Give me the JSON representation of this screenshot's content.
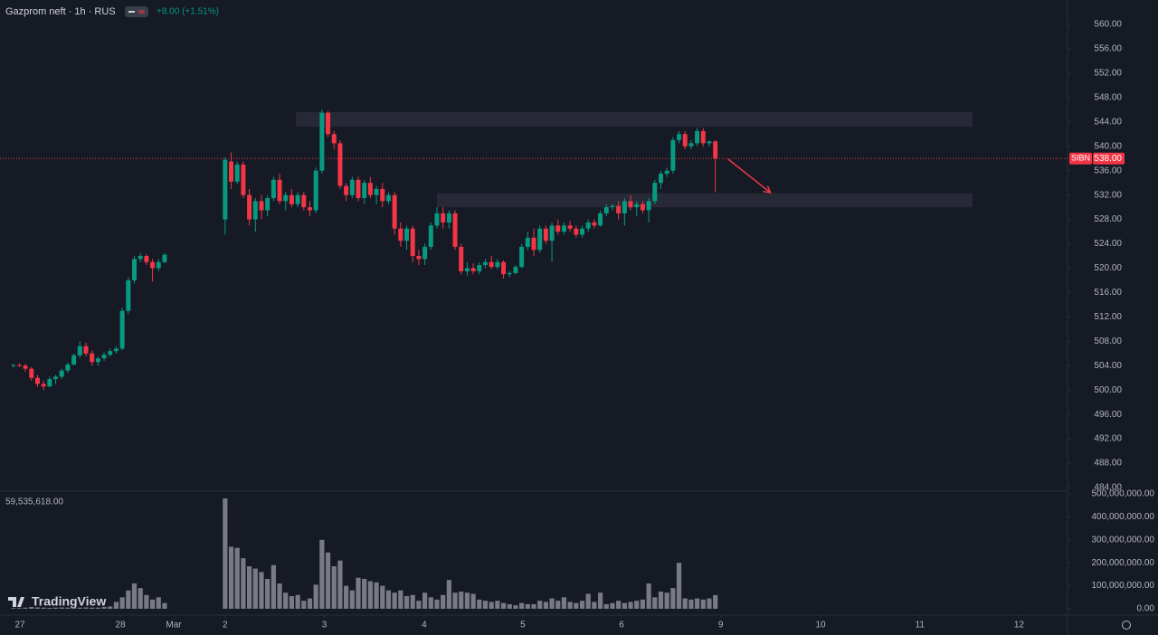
{
  "logo": "TradingView",
  "chart_data": [
    {
      "type": "candlestick",
      "title": "Gazprom neft · 1h · RUS",
      "change": "+8.00 (+1.51%)",
      "symbol": "SIBN",
      "last_price": {
        "value": 538,
        "label": "538.00"
      },
      "up_color": "#089981",
      "down_color": "#f23645",
      "x": [
        0,
        1,
        2,
        3,
        4,
        5,
        6,
        7,
        8,
        9,
        10,
        11,
        12,
        13,
        14,
        15,
        16,
        17,
        18,
        19,
        20,
        21,
        22,
        23,
        24,
        25,
        35,
        36,
        37,
        38,
        39,
        40,
        41,
        42,
        43,
        44,
        45,
        46,
        47,
        48,
        49,
        50,
        51,
        52,
        53,
        54,
        55,
        56,
        57,
        58,
        59,
        60,
        61,
        62,
        63,
        64,
        65,
        66,
        67,
        68,
        69,
        70,
        71,
        72,
        73,
        74,
        75,
        76,
        77,
        78,
        79,
        80,
        81,
        82,
        83,
        84,
        85,
        86,
        87,
        88,
        89,
        90,
        91,
        92,
        93,
        94,
        95,
        96,
        97,
        98,
        99,
        100,
        101,
        102,
        103,
        104,
        105,
        106,
        107,
        108,
        109,
        110,
        111,
        112,
        113,
        114,
        115,
        116
      ],
      "open": [
        504,
        504.1,
        504,
        503.5,
        502,
        501,
        500.6,
        501.8,
        502.2,
        503.2,
        504.2,
        505.7,
        507.2,
        506,
        504.6,
        505.2,
        505.8,
        506.4,
        506.8,
        513,
        518,
        521.5,
        522,
        521,
        520,
        521,
        528,
        537.5,
        534.2,
        537,
        532,
        528,
        531,
        529.5,
        531.5,
        534.5,
        531,
        532,
        530.5,
        532,
        530,
        529.5,
        536,
        545.5,
        542,
        540.5,
        533.5,
        532,
        534.5,
        531.5,
        534,
        532,
        533,
        531,
        532,
        526.5,
        524.5,
        526.5,
        522,
        521.5,
        523.5,
        527,
        529,
        527.5,
        529,
        523.5,
        519.5,
        520,
        519.5,
        520.5,
        521,
        520.2,
        521,
        519,
        519.2,
        520.2,
        523.5,
        525,
        523,
        526.5,
        524.5,
        527,
        526,
        527,
        526.5,
        525.5,
        526.5,
        527.5,
        527,
        529,
        530,
        530.2,
        529,
        531,
        530,
        530.5,
        529.5,
        531,
        534,
        535.5,
        536,
        541,
        542,
        540,
        540.5,
        542.5,
        540.5,
        540.8
      ],
      "high": [
        504.3,
        504.4,
        504.3,
        503.8,
        502.5,
        501.5,
        502.2,
        502.5,
        503.5,
        504.5,
        506,
        508,
        507.8,
        506.5,
        505.5,
        506.2,
        506.8,
        507.2,
        513.5,
        518.5,
        522,
        522.5,
        522.3,
        521.5,
        521.5,
        522.5,
        538.2,
        539,
        537.5,
        537.5,
        533,
        531.5,
        532,
        532,
        535,
        535.5,
        532.5,
        533,
        532.5,
        532.5,
        531,
        536.5,
        546,
        545.8,
        542.5,
        541,
        534,
        535,
        535,
        534.5,
        535,
        533.5,
        534,
        532.5,
        532.5,
        527.5,
        527,
        527,
        523,
        524,
        527.5,
        530,
        530,
        529.5,
        529.5,
        524,
        521,
        520.8,
        521,
        521.5,
        522,
        521.5,
        521.3,
        519.5,
        520.5,
        524,
        526,
        526.5,
        527,
        527,
        527.5,
        528,
        527.5,
        527.8,
        527,
        527,
        528,
        528,
        529.5,
        530.5,
        530.5,
        531,
        531.5,
        532,
        531,
        531,
        531.5,
        534.5,
        536,
        536.5,
        541.5,
        542.5,
        542.5,
        541,
        543,
        543,
        541,
        541
      ],
      "low": [
        503.7,
        503.8,
        503,
        501.5,
        500.5,
        500,
        500.4,
        501,
        501.8,
        502.8,
        504,
        505.3,
        505.5,
        504,
        504,
        504.8,
        505.5,
        506,
        506.5,
        512.5,
        517.5,
        521,
        520.5,
        517.8,
        519.5,
        520.8,
        525.5,
        533,
        533.8,
        531.5,
        527,
        526,
        528,
        528.5,
        531,
        530.5,
        529.5,
        530,
        530,
        529.5,
        528.5,
        529,
        535.5,
        541.5,
        539.5,
        533,
        531,
        531.5,
        531,
        530.5,
        531.5,
        530.5,
        530,
        530.5,
        525.5,
        523.5,
        523,
        521,
        520.5,
        520.5,
        523,
        526.5,
        526.5,
        526.5,
        523,
        519,
        518.8,
        519,
        519,
        520,
        519.8,
        519.8,
        518.3,
        518.5,
        519,
        520,
        523,
        522,
        522.5,
        524,
        521,
        525.5,
        525.5,
        526,
        525,
        525,
        526,
        526.5,
        526.8,
        528.5,
        529.5,
        528,
        527,
        529.5,
        528.5,
        529,
        527.5,
        530.5,
        533,
        535,
        535.5,
        540.5,
        539.5,
        539.5,
        540,
        540,
        540,
        532.5
      ],
      "close": [
        504.1,
        504,
        503.5,
        502,
        501,
        500.6,
        501.8,
        502.2,
        503.2,
        504.2,
        505.7,
        507.2,
        506,
        504.6,
        505.2,
        505.8,
        506.4,
        506.8,
        513,
        518,
        521.5,
        522,
        521,
        520,
        521,
        522.2,
        537.8,
        534.2,
        537,
        532,
        528,
        531,
        529.5,
        531.5,
        534.5,
        531,
        532,
        530.5,
        532,
        530,
        529.5,
        536,
        545.5,
        542,
        540.5,
        533.5,
        532,
        534.5,
        531.5,
        534,
        532,
        533,
        531,
        532,
        526.5,
        524.5,
        526.5,
        522,
        521.5,
        523.5,
        527,
        529,
        527.5,
        529,
        523.5,
        519.5,
        520,
        519.5,
        520.5,
        521,
        520.2,
        521,
        519,
        519.2,
        520.2,
        523.5,
        525,
        523,
        526.5,
        524.5,
        527,
        526,
        527,
        526.5,
        525.5,
        526.5,
        527.5,
        527,
        529,
        530,
        530.2,
        529,
        531,
        530,
        530.5,
        529.5,
        531,
        534,
        535.5,
        536,
        541,
        542,
        540,
        540.5,
        542.5,
        540.5,
        540.8,
        538
      ],
      "zones": [
        {
          "xlim": [
            46.7,
            158.5
          ],
          "ylim": [
            543.2,
            545.6
          ],
          "color": "#2a2e39"
        },
        {
          "xlim": [
            70.0,
            158.5
          ],
          "ylim": [
            530.0,
            532.3
          ],
          "color": "#2a2e39"
        }
      ],
      "arrow": {
        "x": [
          118.1,
          125.1
        ],
        "y": [
          537.9,
          532.4
        ],
        "color": "#f23645"
      },
      "xlim": [
        -2.2,
        174.2
      ],
      "xticks": [
        {
          "value": 1.1,
          "label": "27"
        },
        {
          "value": 17.7,
          "label": "28"
        },
        {
          "value": 26.5,
          "label": "Mar"
        },
        {
          "value": 35,
          "label": "2"
        },
        {
          "value": 51.4,
          "label": "3"
        },
        {
          "value": 67.9,
          "label": "4"
        },
        {
          "value": 84.2,
          "label": "5"
        },
        {
          "value": 100.5,
          "label": "6"
        },
        {
          "value": 116.9,
          "label": "9"
        },
        {
          "value": 133.4,
          "label": "10"
        },
        {
          "value": 149.8,
          "label": "11"
        },
        {
          "value": 166.2,
          "label": "12"
        }
      ],
      "ylim": [
        484,
        560
      ],
      "yticks": [
        {
          "value": 484,
          "label": "484.00"
        },
        {
          "value": 488,
          "label": "488.00"
        },
        {
          "value": 492,
          "label": "492.00"
        },
        {
          "value": 496,
          "label": "496.00"
        },
        {
          "value": 500,
          "label": "500.00"
        },
        {
          "value": 504,
          "label": "504.00"
        },
        {
          "value": 508,
          "label": "508.00"
        },
        {
          "value": 512,
          "label": "512.00"
        },
        {
          "value": 516,
          "label": "516.00"
        },
        {
          "value": 520,
          "label": "520.00"
        },
        {
          "value": 524,
          "label": "524.00"
        },
        {
          "value": 528,
          "label": "528.00"
        },
        {
          "value": 532,
          "label": "532.00"
        },
        {
          "value": 536,
          "label": "536.00"
        },
        {
          "value": 540,
          "label": "540.00"
        },
        {
          "value": 544,
          "label": "544.00"
        },
        {
          "value": 548,
          "label": "548.00"
        },
        {
          "value": 552,
          "label": "552.00"
        },
        {
          "value": 556,
          "label": "556.00"
        },
        {
          "value": 560,
          "label": "560.00"
        }
      ]
    },
    {
      "type": "bar",
      "legend_value": "59,535,618.00",
      "color": "#787b86",
      "x": [
        0,
        1,
        2,
        3,
        4,
        5,
        6,
        7,
        8,
        9,
        10,
        11,
        12,
        13,
        14,
        15,
        16,
        17,
        18,
        19,
        20,
        21,
        22,
        23,
        24,
        25,
        35,
        36,
        37,
        38,
        39,
        40,
        41,
        42,
        43,
        44,
        45,
        46,
        47,
        48,
        49,
        50,
        51,
        52,
        53,
        54,
        55,
        56,
        57,
        58,
        59,
        60,
        61,
        62,
        63,
        64,
        65,
        66,
        67,
        68,
        69,
        70,
        71,
        72,
        73,
        74,
        75,
        76,
        77,
        78,
        79,
        80,
        81,
        82,
        83,
        84,
        85,
        86,
        87,
        88,
        89,
        90,
        91,
        92,
        93,
        94,
        95,
        96,
        97,
        98,
        99,
        100,
        101,
        102,
        103,
        104,
        105,
        106,
        107,
        108,
        109,
        110,
        111,
        112,
        113,
        114,
        115,
        116
      ],
      "values": [
        3000000,
        3000000,
        5000000,
        8000000,
        6000000,
        5000000,
        4000000,
        5000000,
        6000000,
        5000000,
        6000000,
        5000000,
        6000000,
        5000000,
        5000000,
        8000000,
        10000000,
        30000000,
        50000000,
        80000000,
        110000000,
        90000000,
        60000000,
        40000000,
        50000000,
        25000000,
        480000000,
        270000000,
        265000000,
        220000000,
        185000000,
        175000000,
        160000000,
        130000000,
        190000000,
        110000000,
        70000000,
        55000000,
        60000000,
        35000000,
        45000000,
        105000000,
        300000000,
        245000000,
        185000000,
        210000000,
        100000000,
        80000000,
        135000000,
        130000000,
        120000000,
        115000000,
        100000000,
        80000000,
        70000000,
        80000000,
        55000000,
        60000000,
        35000000,
        70000000,
        50000000,
        40000000,
        60000000,
        125000000,
        70000000,
        75000000,
        70000000,
        65000000,
        40000000,
        35000000,
        30000000,
        35000000,
        25000000,
        20000000,
        15000000,
        25000000,
        20000000,
        20000000,
        35000000,
        30000000,
        45000000,
        35000000,
        50000000,
        30000000,
        25000000,
        35000000,
        65000000,
        30000000,
        70000000,
        20000000,
        25000000,
        35000000,
        25000000,
        30000000,
        35000000,
        40000000,
        110000000,
        50000000,
        75000000,
        70000000,
        90000000,
        200000000,
        45000000,
        40000000,
        45000000,
        40000000,
        45000000,
        59535618
      ],
      "xlim": [
        -2.2,
        174.2
      ],
      "ylim": [
        0,
        500000000
      ],
      "yticks": [
        {
          "value": 0,
          "label": "0.00"
        },
        {
          "value": 100000000,
          "label": "100,000,000.00"
        },
        {
          "value": 200000000,
          "label": "200,000,000.00"
        },
        {
          "value": 300000000,
          "label": "300,000,000.00"
        },
        {
          "value": 400000000,
          "label": "400,000,000.00"
        },
        {
          "value": 500000000,
          "label": "500,000,000.00"
        }
      ]
    }
  ]
}
